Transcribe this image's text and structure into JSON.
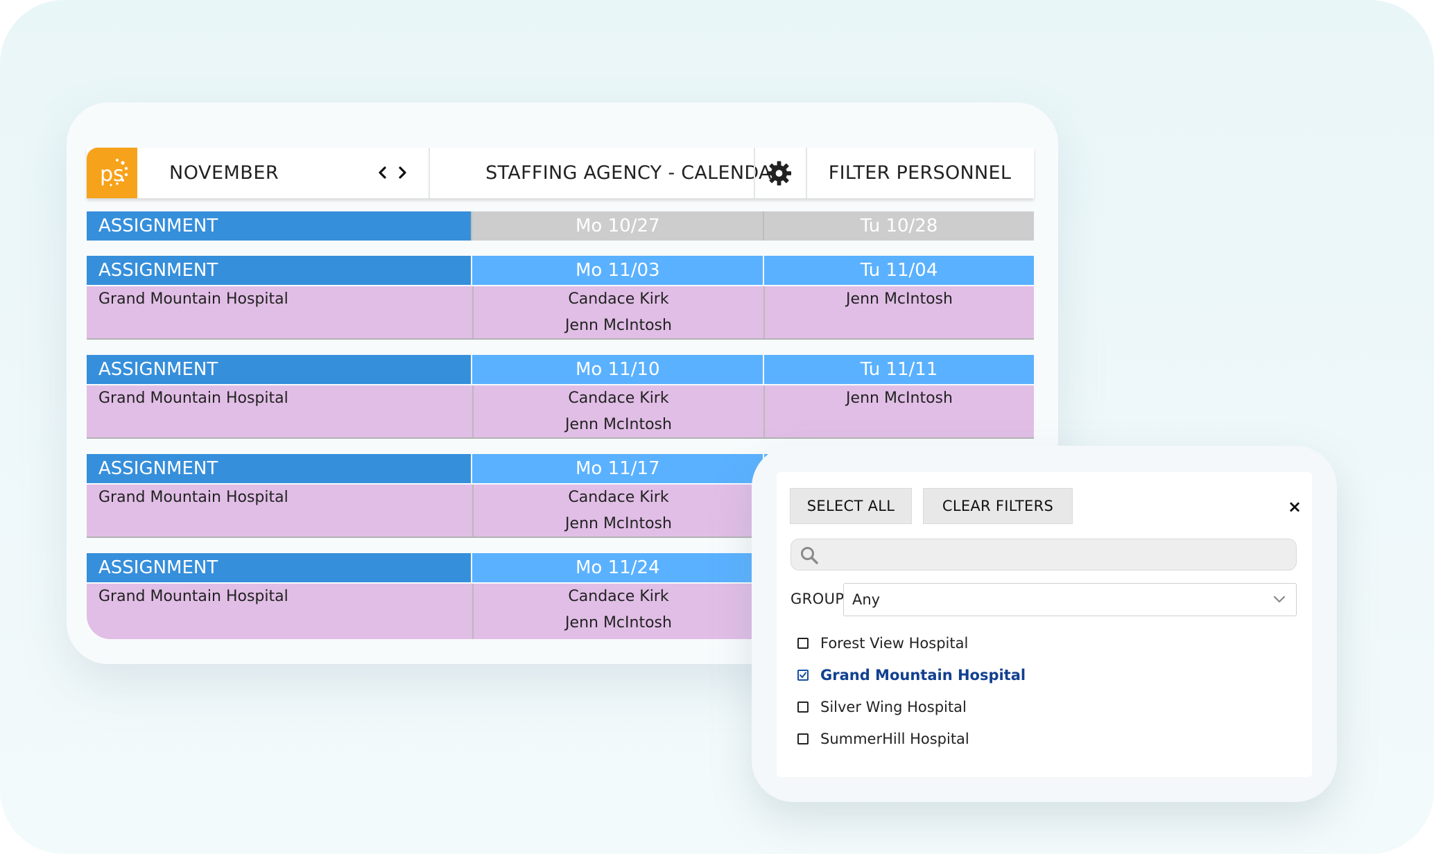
{
  "header": {
    "logo_text": "ps",
    "month": "NOVEMBER",
    "title": "STAFFING AGENCY - CALENDAR",
    "filter_label": "FILTER PERSONNEL"
  },
  "calendar": {
    "assignment_label": "ASSIGNMENT",
    "prev_week": {
      "day1": "Mo 10/27",
      "day2": "Tu 10/28"
    },
    "weeks": [
      {
        "day1": "Mo 11/03",
        "day2": "Tu 11/04",
        "location": "Grand Mountain Hospital",
        "day1_staff": [
          "Candace Kirk",
          "Jenn McIntosh"
        ],
        "day2_staff": [
          "Jenn McIntosh"
        ]
      },
      {
        "day1": "Mo 11/10",
        "day2": "Tu 11/11",
        "location": "Grand Mountain Hospital",
        "day1_staff": [
          "Candace Kirk",
          "Jenn McIntosh"
        ],
        "day2_staff": [
          "Jenn McIntosh"
        ]
      },
      {
        "day1": "Mo 11/17",
        "day2": "",
        "location": "Grand Mountain Hospital",
        "day1_staff": [
          "Candace Kirk",
          "Jenn McIntosh"
        ],
        "day2_staff": []
      },
      {
        "day1": "Mo 11/24",
        "day2": "",
        "location": "Grand Mountain Hospital",
        "day1_staff": [
          "Candace Kirk",
          "Jenn McIntosh"
        ],
        "day2_staff": []
      }
    ]
  },
  "filter": {
    "select_all": "SELECT ALL",
    "clear_filters": "CLEAR FILTERS",
    "close": "×",
    "search_placeholder": "",
    "group_label": "GROUP:",
    "group_value": "Any",
    "options": [
      {
        "label": "Forest View Hospital",
        "checked": false
      },
      {
        "label": "Grand Mountain Hospital",
        "checked": true
      },
      {
        "label": "Silver Wing Hospital",
        "checked": false
      },
      {
        "label": "SummerHill Hospital",
        "checked": false
      }
    ]
  },
  "colors": {
    "brand_orange": "#f7a21b",
    "assignment_blue": "#368fdb",
    "day_header_blue": "#5ab1ff",
    "past_header_gray": "#cdcdcd",
    "row_lavender": "#e1bee6",
    "checked_navy": "#12408f"
  }
}
